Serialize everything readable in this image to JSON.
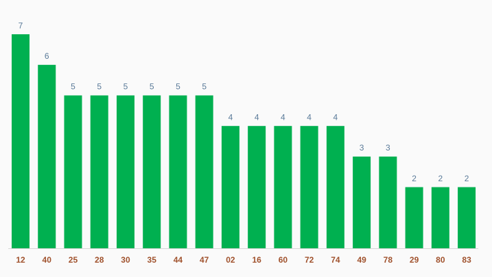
{
  "chart_data": {
    "type": "bar",
    "categories": [
      "12",
      "40",
      "25",
      "28",
      "30",
      "35",
      "44",
      "47",
      "02",
      "16",
      "60",
      "72",
      "74",
      "49",
      "78",
      "29",
      "80",
      "83"
    ],
    "values": [
      7,
      6,
      5,
      5,
      5,
      5,
      5,
      5,
      4,
      4,
      4,
      4,
      4,
      3,
      3,
      2,
      2,
      2
    ],
    "color": "#00b050"
  }
}
